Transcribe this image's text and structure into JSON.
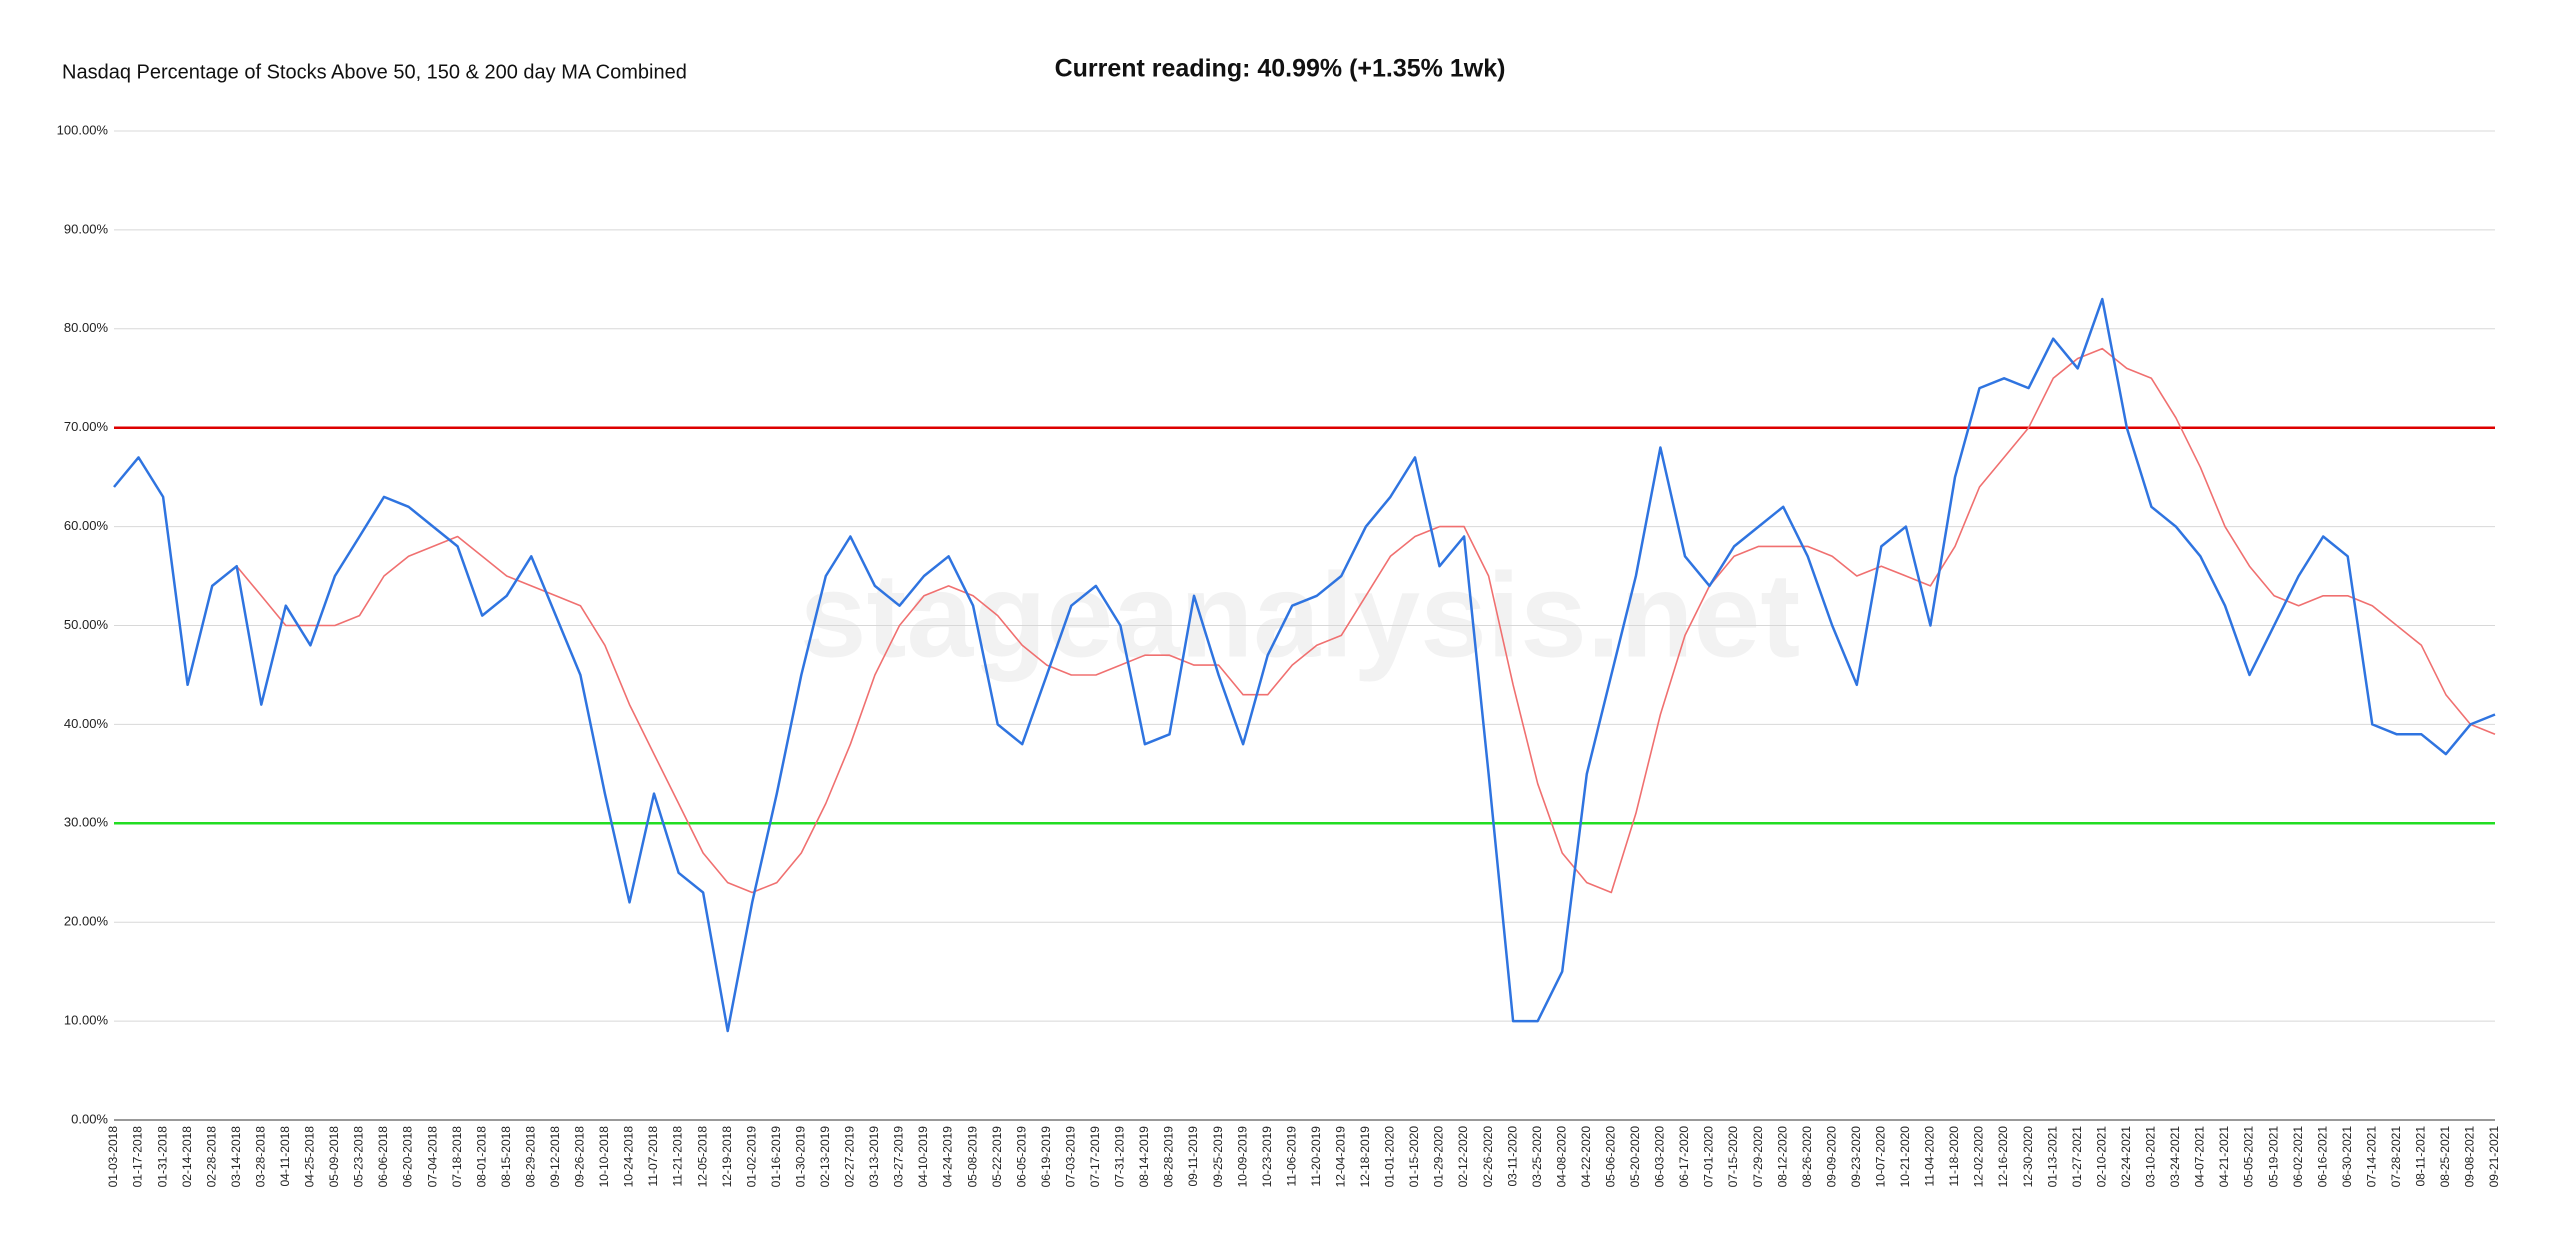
{
  "chart_data": {
    "type": "line",
    "title": "Nasdaq Percentage of Stocks Above 50, 150 & 200 day MA Combined",
    "subtitle": "Current reading: 40.99% (+1.35% 1wk)",
    "watermark": "stageanalysis.net",
    "categories": [
      "01-03-2018",
      "01-17-2018",
      "01-31-2018",
      "02-14-2018",
      "02-28-2018",
      "03-14-2018",
      "03-28-2018",
      "04-11-2018",
      "04-25-2018",
      "05-09-2018",
      "05-23-2018",
      "06-06-2018",
      "06-20-2018",
      "07-04-2018",
      "07-18-2018",
      "08-01-2018",
      "08-15-2018",
      "08-29-2018",
      "09-12-2018",
      "09-26-2018",
      "10-10-2018",
      "10-24-2018",
      "11-07-2018",
      "11-21-2018",
      "12-05-2018",
      "12-19-2018",
      "01-02-2019",
      "01-16-2019",
      "01-30-2019",
      "02-13-2019",
      "02-27-2019",
      "03-13-2019",
      "03-27-2019",
      "04-10-2019",
      "04-24-2019",
      "05-08-2019",
      "05-22-2019",
      "06-05-2019",
      "06-19-2019",
      "07-03-2019",
      "07-17-2019",
      "07-31-2019",
      "08-14-2019",
      "08-28-2019",
      "09-11-2019",
      "09-25-2019",
      "10-09-2019",
      "10-23-2019",
      "11-06-2019",
      "11-20-2019",
      "12-04-2019",
      "12-18-2019",
      "01-01-2020",
      "01-15-2020",
      "01-29-2020",
      "02-12-2020",
      "02-26-2020",
      "03-11-2020",
      "03-25-2020",
      "04-08-2020",
      "04-22-2020",
      "05-06-2020",
      "05-20-2020",
      "06-03-2020",
      "06-17-2020",
      "07-01-2020",
      "07-15-2020",
      "07-29-2020",
      "08-12-2020",
      "08-26-2020",
      "09-09-2020",
      "09-23-2020",
      "10-07-2020",
      "10-21-2020",
      "11-04-2020",
      "11-18-2020",
      "12-02-2020",
      "12-16-2020",
      "12-30-2020",
      "01-13-2021",
      "01-27-2021",
      "02-10-2021",
      "02-24-2021",
      "03-10-2021",
      "03-24-2021",
      "04-07-2021",
      "04-21-2021",
      "05-05-2021",
      "05-19-2021",
      "06-02-2021",
      "06-16-2021",
      "06-30-2021",
      "07-14-2021",
      "07-28-2021",
      "08-11-2021",
      "08-25-2021",
      "09-08-2021",
      "09-21-2021"
    ],
    "series": [
      {
        "color": "#2f74e0",
        "values": [
          64,
          67,
          63,
          44,
          54,
          56,
          42,
          52,
          48,
          55,
          59,
          63,
          62,
          60,
          58,
          51,
          53,
          57,
          51,
          45,
          33,
          22,
          33,
          25,
          23,
          9,
          22,
          33,
          45,
          55,
          59,
          54,
          52,
          55,
          57,
          52,
          40,
          38,
          45,
          52,
          54,
          50,
          38,
          39,
          53,
          45,
          38,
          47,
          52,
          53,
          55,
          60,
          63,
          67,
          56,
          59,
          35,
          10,
          10,
          15,
          35,
          45,
          55,
          68,
          57,
          54,
          58,
          60,
          62,
          57,
          50,
          44,
          58,
          60,
          50,
          65,
          74,
          75,
          74,
          79,
          76,
          83,
          70,
          62,
          60,
          57,
          52,
          45,
          50,
          55,
          59,
          57,
          40,
          39,
          39,
          37,
          40,
          41
        ]
      },
      {
        "color": "#f07070",
        "values": [
          null,
          null,
          null,
          null,
          null,
          56,
          53,
          50,
          50,
          50,
          51,
          55,
          57,
          58,
          59,
          57,
          55,
          54,
          53,
          52,
          48,
          42,
          37,
          32,
          27,
          24,
          23,
          24,
          27,
          32,
          38,
          45,
          50,
          53,
          54,
          53,
          51,
          48,
          46,
          45,
          45,
          46,
          47,
          47,
          46,
          46,
          43,
          43,
          46,
          48,
          49,
          53,
          57,
          59,
          60,
          60,
          55,
          44,
          34,
          27,
          24,
          23,
          31,
          41,
          49,
          54,
          57,
          58,
          58,
          58,
          57,
          55,
          56,
          55,
          54,
          58,
          64,
          67,
          70,
          75,
          77,
          78,
          76,
          75,
          71,
          66,
          60,
          56,
          53,
          52,
          53,
          53,
          52,
          50,
          48,
          43,
          40,
          39
        ]
      }
    ],
    "reference_lines": [
      {
        "value": 70,
        "color": "#dd0000"
      },
      {
        "value": 30,
        "color": "#22dd22"
      }
    ],
    "ylim": [
      0,
      100
    ],
    "yticks": [
      {
        "value": 0,
        "label": "0.00%"
      },
      {
        "value": 10,
        "label": "10.00%"
      },
      {
        "value": 20,
        "label": "20.00%"
      },
      {
        "value": 30,
        "label": "30.00%"
      },
      {
        "value": 40,
        "label": "40.00%"
      },
      {
        "value": 50,
        "label": "50.00%"
      },
      {
        "value": 60,
        "label": "60.00%"
      },
      {
        "value": 70,
        "label": "70.00%"
      },
      {
        "value": 80,
        "label": "80.00%"
      },
      {
        "value": 90,
        "label": "90.00%"
      },
      {
        "value": 100,
        "label": "100.00%"
      }
    ],
    "grid": true
  }
}
